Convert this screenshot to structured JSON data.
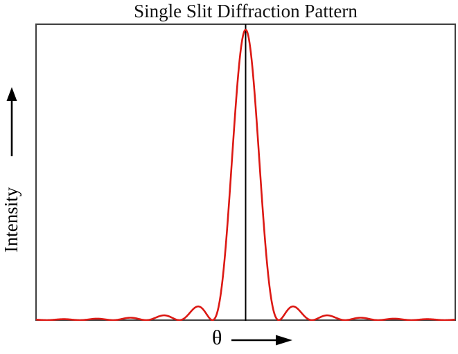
{
  "chart": {
    "title": "Single Slit Diffraction Pattern",
    "y_axis_label": "Intensity",
    "x_axis_label": "θ",
    "frame_color": "#3f3f3f",
    "curve_color": "#dc1914",
    "center_line_color": "#000000",
    "arrow_color": "#000000",
    "background_color": "#ffffff"
  },
  "chart_data": {
    "type": "line",
    "title": "Single Slit Diffraction Pattern",
    "xlabel": "θ",
    "ylabel": "Intensity",
    "function": "sinc_squared",
    "formula": "I(x) = (sin(pi*x)/(pi*x))^2",
    "x_range": [
      -6.3,
      6.3
    ],
    "ylim": [
      0,
      1
    ],
    "sample_step": 0.02,
    "grid": false,
    "legend": false,
    "axis_ticks": "none",
    "peak": {
      "x": 0,
      "y": 1
    },
    "zeros": [
      -6,
      -5,
      -4,
      -3,
      -2,
      -1,
      1,
      2,
      3,
      4,
      5,
      6
    ],
    "secondary_maxima": [
      {
        "x": -5.48,
        "y": 0.0033
      },
      {
        "x": -4.48,
        "y": 0.005
      },
      {
        "x": -3.47,
        "y": 0.0083
      },
      {
        "x": -2.46,
        "y": 0.0165
      },
      {
        "x": -1.43,
        "y": 0.0472
      },
      {
        "x": 1.43,
        "y": 0.0472
      },
      {
        "x": 2.46,
        "y": 0.0165
      },
      {
        "x": 3.47,
        "y": 0.0083
      },
      {
        "x": 4.48,
        "y": 0.005
      },
      {
        "x": 5.48,
        "y": 0.0033
      }
    ],
    "samples": [
      [
        -6,
        0
      ],
      [
        -5.5,
        0.0034
      ],
      [
        -5,
        0
      ],
      [
        -4.5,
        0.005
      ],
      [
        -4,
        0
      ],
      [
        -3.5,
        0.0083
      ],
      [
        -3,
        0
      ],
      [
        -2.5,
        0.0162
      ],
      [
        -2,
        0
      ],
      [
        -1.5,
        0.045
      ],
      [
        -1,
        0
      ],
      [
        -0.5,
        0.4053
      ],
      [
        0,
        1
      ],
      [
        0.5,
        0.4053
      ],
      [
        1,
        0
      ],
      [
        1.5,
        0.045
      ],
      [
        2,
        0
      ],
      [
        2.5,
        0.0162
      ],
      [
        3,
        0
      ],
      [
        3.5,
        0.0083
      ],
      [
        4,
        0
      ],
      [
        4.5,
        0.005
      ],
      [
        5,
        0
      ],
      [
        5.5,
        0.0034
      ],
      [
        6,
        0
      ]
    ],
    "annotations": [
      "vertical line at θ = 0 through central maximum"
    ]
  }
}
